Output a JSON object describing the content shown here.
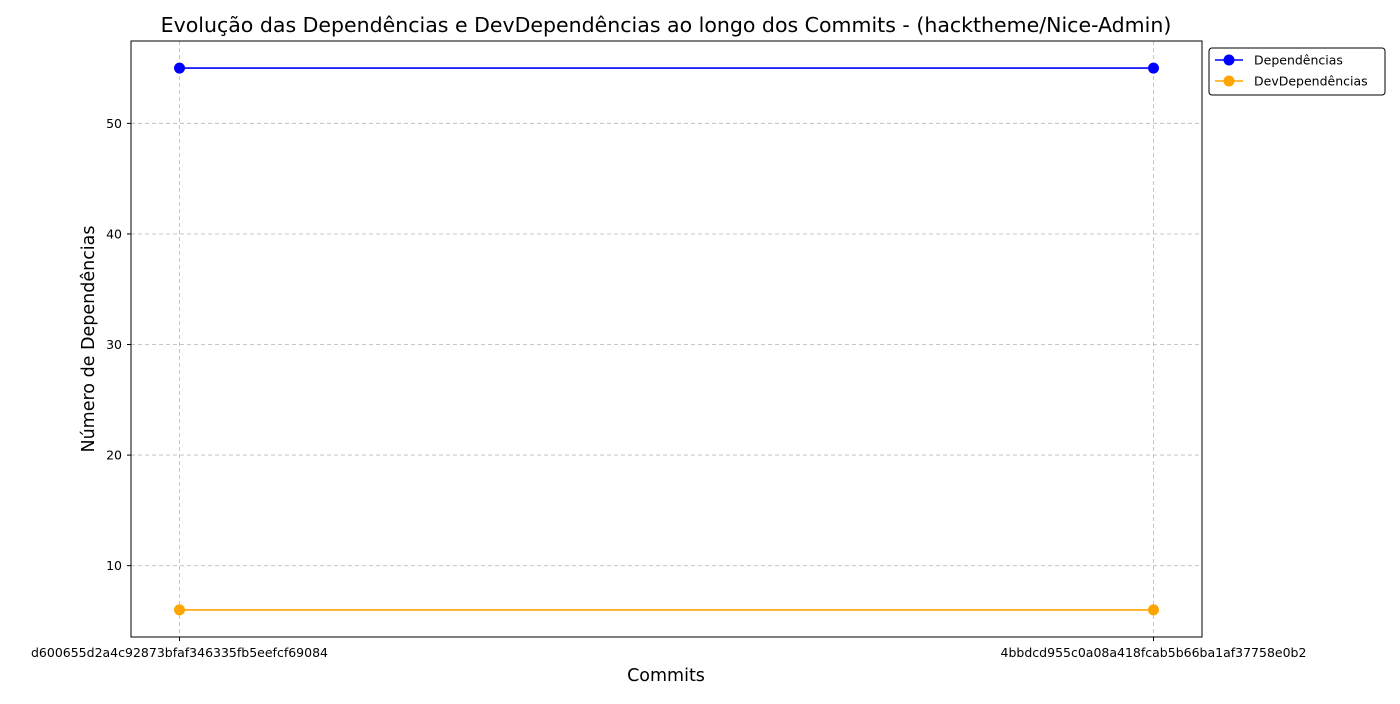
{
  "chart_data": {
    "type": "line",
    "title": "Evolução das Dependências e DevDependências ao longo dos Commits - (hacktheme/Nice-Admin)",
    "xlabel": "Commits",
    "ylabel": "Número de Dependências",
    "categories": [
      "d600655d2a4c92873bfaf346335fb5eefcf69084",
      "4bbdcd955c0a08a418fcab5b66ba1af37758e0b2"
    ],
    "series": [
      {
        "name": "Dependências",
        "values": [
          55,
          55
        ],
        "color": "#0000ff",
        "marker": "circle"
      },
      {
        "name": "DevDependências",
        "values": [
          6,
          6
        ],
        "color": "#ffa500",
        "marker": "circle"
      }
    ],
    "ylim": [
      3.55,
      57.45
    ],
    "yticks": [
      10,
      20,
      30,
      40,
      50
    ],
    "grid": true,
    "legend_position": "outside-top-right"
  }
}
